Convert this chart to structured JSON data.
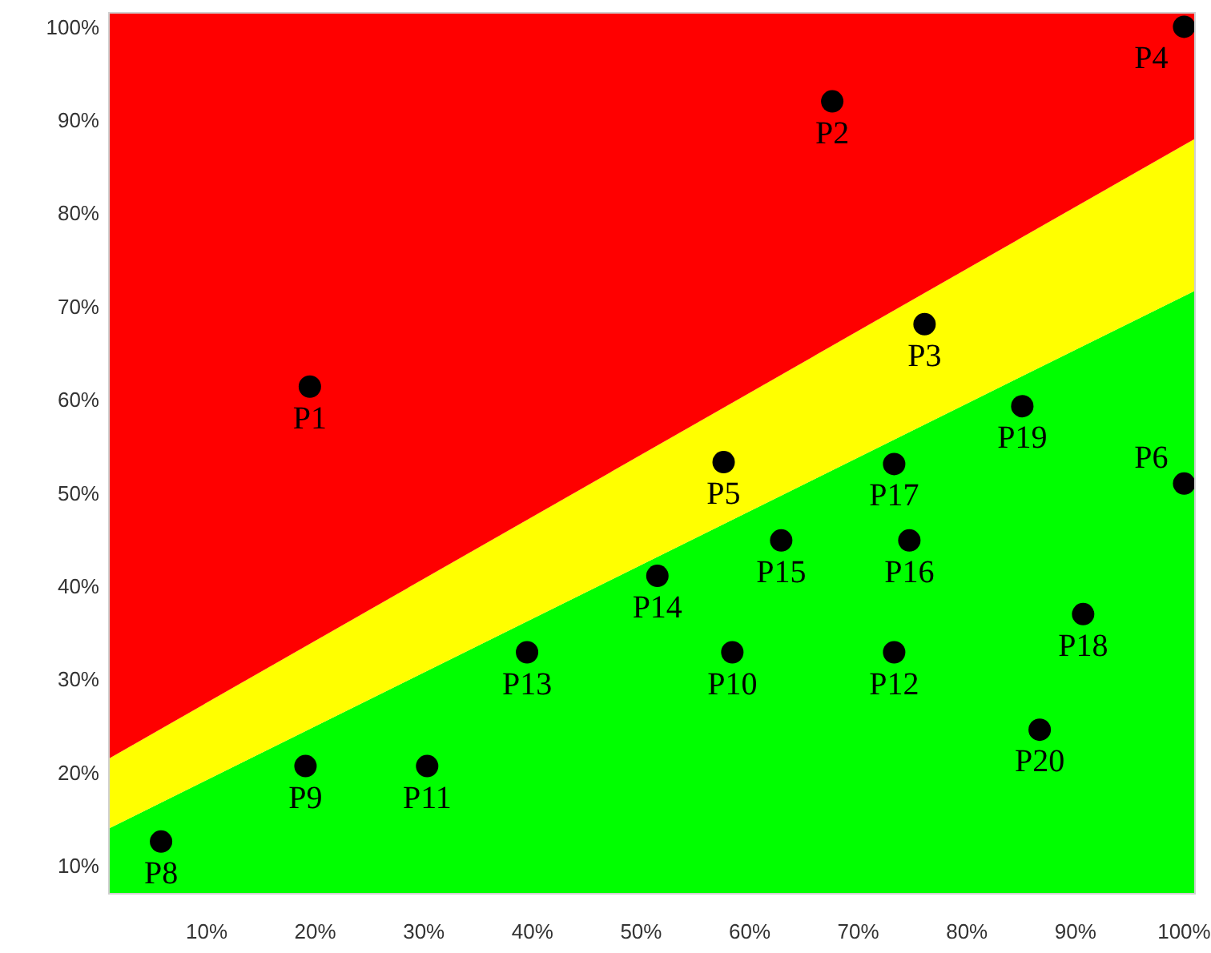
{
  "chart_data": {
    "type": "scatter",
    "xlim": [
      1,
      101
    ],
    "ylim": [
      7,
      101.5
    ],
    "xticks": [
      {
        "value": 10,
        "label": "10%"
      },
      {
        "value": 20,
        "label": "20%"
      },
      {
        "value": 30,
        "label": "30%"
      },
      {
        "value": 40,
        "label": "40%"
      },
      {
        "value": 50,
        "label": "50%"
      },
      {
        "value": 60,
        "label": "60%"
      },
      {
        "value": 70,
        "label": "70%"
      },
      {
        "value": 80,
        "label": "80%"
      },
      {
        "value": 90,
        "label": "90%"
      },
      {
        "value": 100,
        "label": "100%"
      }
    ],
    "yticks": [
      {
        "value": 10,
        "label": "10%"
      },
      {
        "value": 20,
        "label": "20%"
      },
      {
        "value": 30,
        "label": "30%"
      },
      {
        "value": 40,
        "label": "40%"
      },
      {
        "value": 50,
        "label": "50%"
      },
      {
        "value": 60,
        "label": "60%"
      },
      {
        "value": 70,
        "label": "70%"
      },
      {
        "value": 80,
        "label": "80%"
      },
      {
        "value": 90,
        "label": "90%"
      },
      {
        "value": 100,
        "label": "100%"
      }
    ],
    "grid": false,
    "stacked": true,
    "series": [
      {
        "type": "area",
        "color": "#00ff00",
        "x": [
          1,
          101
        ],
        "values": [
          14,
          71.7
        ]
      },
      {
        "type": "area",
        "color": "#ffff00",
        "x": [
          1,
          101
        ],
        "values": [
          7.5,
          16.3
        ]
      },
      {
        "type": "area",
        "color": "#ff0000",
        "x": [
          1,
          101
        ],
        "values": [
          80,
          13.5
        ]
      },
      {
        "color": "#000000",
        "marker": "circle",
        "x": [
          19.5,
          67.6,
          76.1,
          100,
          57.6,
          100,
          5.8,
          19.1,
          58.4,
          30.3,
          73.3,
          39.5,
          51.5,
          62.9,
          74.7,
          73.3,
          90.7,
          85.1,
          86.7
        ],
        "values": [
          61.4,
          92,
          68.1,
          100,
          53.3,
          51,
          12.6,
          20.7,
          32.9,
          20.7,
          32.9,
          32.9,
          41.1,
          44.9,
          44.9,
          53.1,
          37,
          59.3,
          24.6
        ]
      }
    ],
    "annotations": [
      {
        "text": "P1",
        "x": 19.5,
        "y": 61.4
      },
      {
        "text": "P2",
        "x": 67.6,
        "y": 92
      },
      {
        "text": "P3",
        "x": 76.1,
        "y": 68.1
      },
      {
        "text": "P4",
        "x": 100,
        "y": 100
      },
      {
        "text": "P5",
        "x": 57.6,
        "y": 53.3
      },
      {
        "text": "P6",
        "x": 100,
        "y": 51
      },
      {
        "text": "P8",
        "x": 5.8,
        "y": 12.6
      },
      {
        "text": "P9",
        "x": 19.1,
        "y": 20.7
      },
      {
        "text": "P10",
        "x": 58.4,
        "y": 32.9
      },
      {
        "text": "P11",
        "x": 30.3,
        "y": 20.7
      },
      {
        "text": "P12",
        "x": 73.3,
        "y": 32.9
      },
      {
        "text": "P13",
        "x": 39.5,
        "y": 32.9
      },
      {
        "text": "P14",
        "x": 51.5,
        "y": 41.1
      },
      {
        "text": "P15",
        "x": 62.9,
        "y": 44.9
      },
      {
        "text": "P16",
        "x": 74.7,
        "y": 44.9
      },
      {
        "text": "P17",
        "x": 73.3,
        "y": 53.1
      },
      {
        "text": "P18",
        "x": 90.7,
        "y": 37
      },
      {
        "text": "P19",
        "x": 85.1,
        "y": 59.3
      },
      {
        "text": "P20",
        "x": 86.7,
        "y": 24.6
      }
    ]
  }
}
